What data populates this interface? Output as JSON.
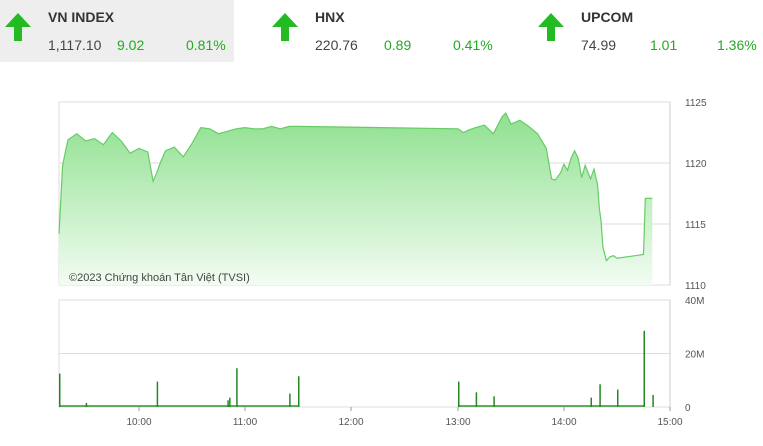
{
  "tickers": [
    {
      "name": "VN INDEX",
      "value": "1,117.10",
      "change": "9.02",
      "percent": "0.81%",
      "direction": "up"
    },
    {
      "name": "HNX",
      "value": "220.76",
      "change": "0.89",
      "percent": "0.41%",
      "direction": "up"
    },
    {
      "name": "UPCOM",
      "value": "74.99",
      "change": "1.01",
      "percent": "1.36%",
      "direction": "up"
    }
  ],
  "colors": {
    "up": "#22bb22",
    "area_top": "#8fe08f",
    "area_bottom": "#f2fcf2",
    "line": "#66cc66",
    "volume": "#228822",
    "grid": "#dddddd"
  },
  "chart_data": [
    {
      "type": "area",
      "xlabel": "",
      "ylabel": "",
      "ylim": [
        1110,
        1125
      ],
      "y_ticks": [
        "1125",
        "1120",
        "1115",
        "1110"
      ],
      "x_ticks": [
        "10:00",
        "11:00",
        "12:00",
        "13:00",
        "14:00",
        "15:00"
      ],
      "watermark": "©2023 Chứng khoán Tân Việt (TVSI)",
      "x": [
        "9:15",
        "9:17",
        "9:20",
        "9:25",
        "9:30",
        "9:35",
        "9:40",
        "9:45",
        "9:50",
        "9:55",
        "10:00",
        "10:05",
        "10:08",
        "10:10",
        "10:12",
        "10:15",
        "10:20",
        "10:25",
        "10:30",
        "10:35",
        "10:40",
        "10:45",
        "10:50",
        "10:55",
        "11:00",
        "11:05",
        "11:10",
        "11:15",
        "11:20",
        "11:25",
        "11:30",
        "13:00",
        "13:03",
        "13:06",
        "13:10",
        "13:15",
        "13:20",
        "13:25",
        "13:27",
        "13:30",
        "13:35",
        "13:40",
        "13:45",
        "13:50",
        "13:53",
        "13:55",
        "13:58",
        "14:00",
        "14:02",
        "14:04",
        "14:06",
        "14:08",
        "14:10",
        "14:12",
        "14:15",
        "14:17",
        "14:19",
        "14:20",
        "14:21",
        "14:22",
        "14:24",
        "14:26",
        "14:28",
        "14:30",
        "14:45",
        "14:46",
        "14:50"
      ],
      "values": [
        1114.2,
        1119.8,
        1121.9,
        1122.4,
        1121.8,
        1122.0,
        1121.5,
        1122.5,
        1121.8,
        1120.8,
        1121.2,
        1120.9,
        1118.5,
        1119.2,
        1120.0,
        1121.0,
        1121.3,
        1120.5,
        1121.6,
        1122.9,
        1122.8,
        1122.4,
        1122.6,
        1122.8,
        1122.9,
        1122.8,
        1122.8,
        1123.0,
        1122.8,
        1123.0,
        1123.0,
        1122.8,
        1122.5,
        1122.7,
        1122.9,
        1123.1,
        1122.4,
        1123.8,
        1124.1,
        1123.2,
        1123.5,
        1123.0,
        1122.4,
        1121.2,
        1118.7,
        1118.6,
        1119.2,
        1119.9,
        1119.4,
        1120.4,
        1121.0,
        1120.4,
        1118.8,
        1119.8,
        1118.7,
        1119.5,
        1118.2,
        1116.3,
        1115.2,
        1113.1,
        1112.0,
        1112.3,
        1112.4,
        1112.2,
        1112.5,
        1117.1,
        1117.1
      ]
    },
    {
      "type": "bar",
      "xlabel": "",
      "ylabel": "",
      "ylim": [
        0,
        40
      ],
      "y_ticks": [
        "40M",
        "20M",
        "0"
      ],
      "x": [
        "9:15",
        "9:30",
        "10:10",
        "10:50",
        "10:51",
        "10:55",
        "11:25",
        "11:30",
        "13:00",
        "13:10",
        "13:20",
        "14:15",
        "14:20",
        "14:30",
        "14:45",
        "14:50"
      ],
      "values": [
        12.5,
        1.5,
        9.5,
        2.5,
        3.5,
        14.5,
        5.0,
        11.5,
        9.5,
        5.5,
        4.0,
        3.5,
        8.5,
        6.5,
        28.5,
        4.5
      ]
    }
  ]
}
